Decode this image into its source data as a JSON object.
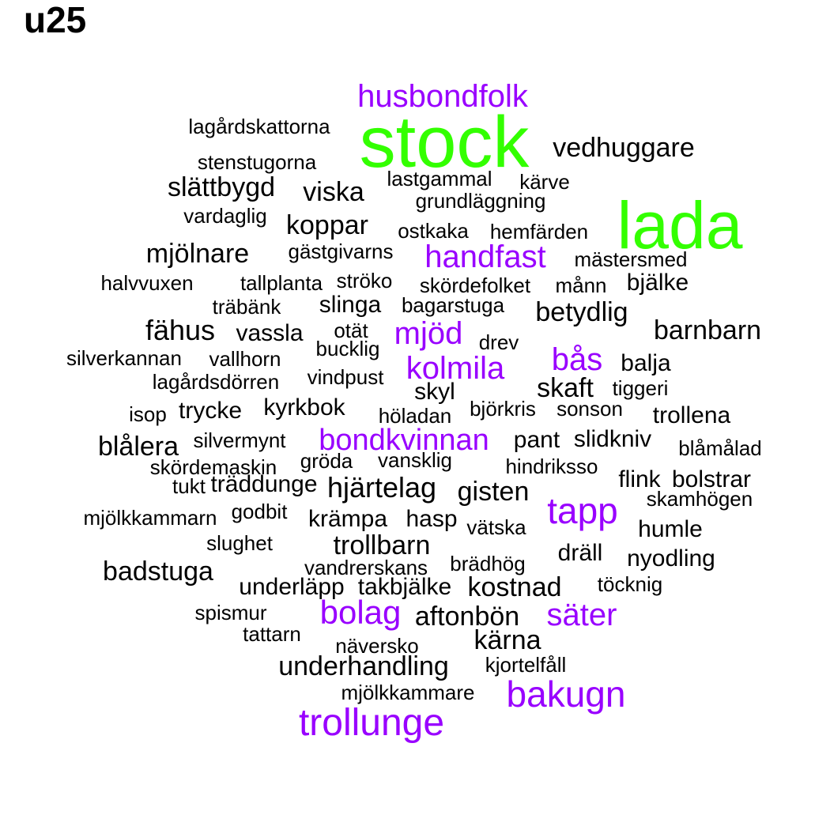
{
  "title": "u25",
  "colors": {
    "large": "#33ff00",
    "medium": "#9900ff",
    "small": "#000000"
  },
  "words": [
    {
      "text": "stock",
      "tier": "large"
    },
    {
      "text": "lada",
      "tier": "large"
    },
    {
      "text": "husbondfolk",
      "tier": "medium"
    },
    {
      "text": "handfast",
      "tier": "medium"
    },
    {
      "text": "mjöd",
      "tier": "medium"
    },
    {
      "text": "bås",
      "tier": "medium"
    },
    {
      "text": "kolmila",
      "tier": "medium"
    },
    {
      "text": "bondkvinnan",
      "tier": "medium"
    },
    {
      "text": "tapp",
      "tier": "medium"
    },
    {
      "text": "bolag",
      "tier": "medium"
    },
    {
      "text": "säter",
      "tier": "medium"
    },
    {
      "text": "bakugn",
      "tier": "medium"
    },
    {
      "text": "trollunge",
      "tier": "medium"
    },
    {
      "text": "lagårdskattorna",
      "tier": "small"
    },
    {
      "text": "vedhuggare",
      "tier": "small"
    },
    {
      "text": "stenstugorna",
      "tier": "small"
    },
    {
      "text": "slättbygd",
      "tier": "small"
    },
    {
      "text": "lastgammal",
      "tier": "small"
    },
    {
      "text": "kärve",
      "tier": "small"
    },
    {
      "text": "viska",
      "tier": "small"
    },
    {
      "text": "grundläggning",
      "tier": "small"
    },
    {
      "text": "vardaglig",
      "tier": "small"
    },
    {
      "text": "koppar",
      "tier": "small"
    },
    {
      "text": "ostkaka",
      "tier": "small"
    },
    {
      "text": "hemfärden",
      "tier": "small"
    },
    {
      "text": "mjölnare",
      "tier": "small"
    },
    {
      "text": "gästgivarns",
      "tier": "small"
    },
    {
      "text": "mästersmed",
      "tier": "small"
    },
    {
      "text": "halvvuxen",
      "tier": "small"
    },
    {
      "text": "tallplanta",
      "tier": "small"
    },
    {
      "text": "ströko",
      "tier": "small"
    },
    {
      "text": "skördefolket",
      "tier": "small"
    },
    {
      "text": "månn",
      "tier": "small"
    },
    {
      "text": "bjälke",
      "tier": "small"
    },
    {
      "text": "träbänk",
      "tier": "small"
    },
    {
      "text": "slinga",
      "tier": "small"
    },
    {
      "text": "bagarstuga",
      "tier": "small"
    },
    {
      "text": "betydlig",
      "tier": "small"
    },
    {
      "text": "fähus",
      "tier": "small"
    },
    {
      "text": "vassla",
      "tier": "small"
    },
    {
      "text": "otät",
      "tier": "small"
    },
    {
      "text": "barnbarn",
      "tier": "small"
    },
    {
      "text": "bucklig",
      "tier": "small"
    },
    {
      "text": "drev",
      "tier": "small"
    },
    {
      "text": "silverkannan",
      "tier": "small"
    },
    {
      "text": "vallhorn",
      "tier": "small"
    },
    {
      "text": "balja",
      "tier": "small"
    },
    {
      "text": "vindpust",
      "tier": "small"
    },
    {
      "text": "lagårdsdörren",
      "tier": "small"
    },
    {
      "text": "skaft",
      "tier": "small"
    },
    {
      "text": "tiggeri",
      "tier": "small"
    },
    {
      "text": "skyl",
      "tier": "small"
    },
    {
      "text": "kyrkbok",
      "tier": "small"
    },
    {
      "text": "isop",
      "tier": "small"
    },
    {
      "text": "trycke",
      "tier": "small"
    },
    {
      "text": "björkris",
      "tier": "small"
    },
    {
      "text": "sonson",
      "tier": "small"
    },
    {
      "text": "höladan",
      "tier": "small"
    },
    {
      "text": "trollena",
      "tier": "small"
    },
    {
      "text": "blålera",
      "tier": "small"
    },
    {
      "text": "silvermynt",
      "tier": "small"
    },
    {
      "text": "pant",
      "tier": "small"
    },
    {
      "text": "slidkniv",
      "tier": "small"
    },
    {
      "text": "blåmålad",
      "tier": "small"
    },
    {
      "text": "skördemaskin",
      "tier": "small"
    },
    {
      "text": "gröda",
      "tier": "small"
    },
    {
      "text": "vansklig",
      "tier": "small"
    },
    {
      "text": "hindriksso",
      "tier": "small"
    },
    {
      "text": "flink",
      "tier": "small"
    },
    {
      "text": "bolstrar",
      "tier": "small"
    },
    {
      "text": "tukt",
      "tier": "small"
    },
    {
      "text": "träddunge",
      "tier": "small"
    },
    {
      "text": "hjärtelag",
      "tier": "small"
    },
    {
      "text": "gisten",
      "tier": "small"
    },
    {
      "text": "skamhögen",
      "tier": "small"
    },
    {
      "text": "mjölkkammarn",
      "tier": "small"
    },
    {
      "text": "godbit",
      "tier": "small"
    },
    {
      "text": "krämpa",
      "tier": "small"
    },
    {
      "text": "hasp",
      "tier": "small"
    },
    {
      "text": "vätska",
      "tier": "small"
    },
    {
      "text": "humle",
      "tier": "small"
    },
    {
      "text": "slughet",
      "tier": "small"
    },
    {
      "text": "trollbarn",
      "tier": "small"
    },
    {
      "text": "dräll",
      "tier": "small"
    },
    {
      "text": "nyodling",
      "tier": "small"
    },
    {
      "text": "badstuga",
      "tier": "small"
    },
    {
      "text": "vandrerskans",
      "tier": "small"
    },
    {
      "text": "brädhög",
      "tier": "small"
    },
    {
      "text": "underläpp",
      "tier": "small"
    },
    {
      "text": "takbjälke",
      "tier": "small"
    },
    {
      "text": "kostnad",
      "tier": "small"
    },
    {
      "text": "töcknig",
      "tier": "small"
    },
    {
      "text": "spismur",
      "tier": "small"
    },
    {
      "text": "aftonbön",
      "tier": "small"
    },
    {
      "text": "tattarn",
      "tier": "small"
    },
    {
      "text": "näversko",
      "tier": "small"
    },
    {
      "text": "kärna",
      "tier": "small"
    },
    {
      "text": "underhandling",
      "tier": "small"
    },
    {
      "text": "kjortelfåll",
      "tier": "small"
    },
    {
      "text": "mjölkkammare",
      "tier": "small"
    }
  ]
}
